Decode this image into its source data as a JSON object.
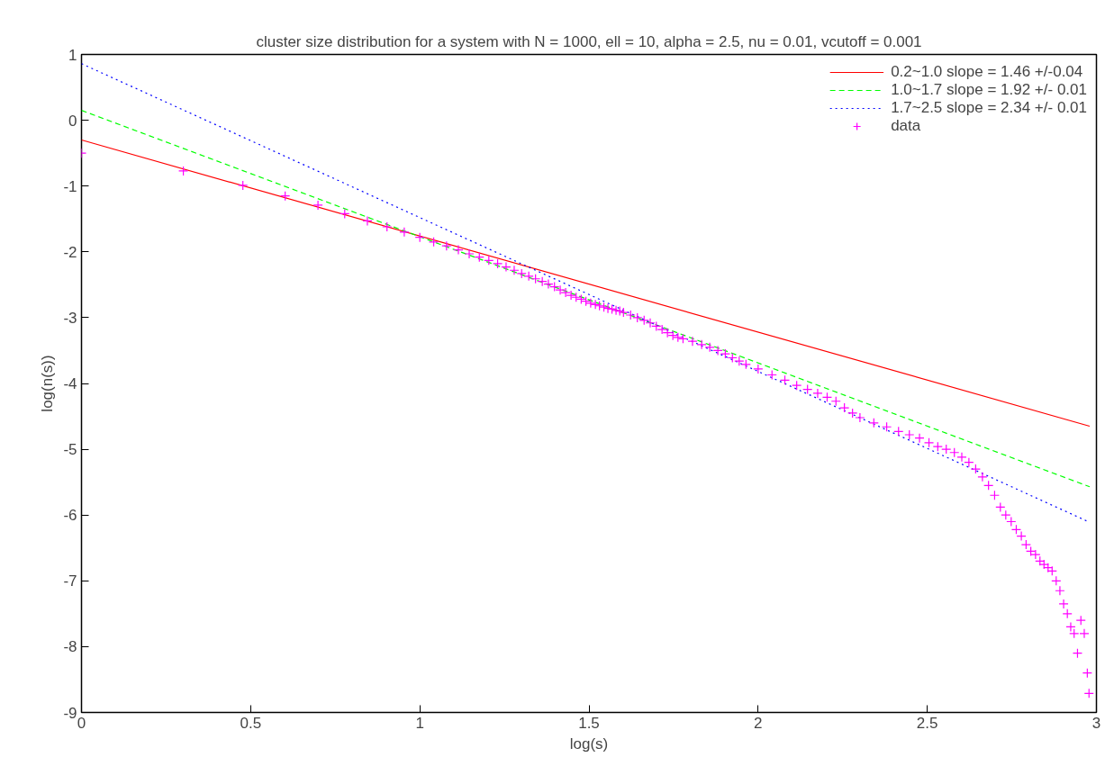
{
  "chart_data": {
    "type": "scatter",
    "title": "cluster size distribution for a system with N = 1000, ell = 10, alpha = 2.5, nu = 0.01, vcutoff = 0.001",
    "xlabel": "log(s)",
    "ylabel": "log(n(s))",
    "xlim": [
      0,
      3
    ],
    "ylim": [
      -9,
      1
    ],
    "xticks": [
      0,
      0.5,
      1,
      1.5,
      2,
      2.5,
      3
    ],
    "yticks": [
      -9,
      -8,
      -7,
      -6,
      -5,
      -4,
      -3,
      -2,
      -1,
      0,
      1
    ],
    "grid": false,
    "legend": "top right",
    "series": [
      {
        "name": "0.2~1.0 slope = 1.46 +/-0.04",
        "type": "line",
        "line_style": "solid",
        "color": "#ff0000",
        "x": [
          0,
          2.98
        ],
        "values": [
          -0.3,
          -4.65
        ]
      },
      {
        "name": "1.0~1.7 slope = 1.92 +/- 0.01",
        "type": "line",
        "line_style": "dashed",
        "color": "#00ff00",
        "x": [
          0,
          2.98
        ],
        "values": [
          0.15,
          -5.57
        ]
      },
      {
        "name": "1.7~2.5 slope = 2.34 +/- 0.01",
        "type": "line",
        "line_style": "dotted",
        "color": "#0000ff",
        "x": [
          0,
          2.98
        ],
        "values": [
          0.86,
          -6.11
        ]
      },
      {
        "name": "data",
        "marker": "cross",
        "color": "#ff00ff",
        "x": [
          0,
          0.301,
          0.477,
          0.602,
          0.699,
          0.778,
          0.845,
          0.903,
          0.954,
          1.0,
          1.041,
          1.079,
          1.114,
          1.146,
          1.176,
          1.204,
          1.23,
          1.255,
          1.279,
          1.301,
          1.322,
          1.342,
          1.362,
          1.38,
          1.398,
          1.415,
          1.431,
          1.447,
          1.462,
          1.477,
          1.491,
          1.505,
          1.519,
          1.531,
          1.544,
          1.556,
          1.568,
          1.58,
          1.591,
          1.602,
          1.623,
          1.643,
          1.663,
          1.681,
          1.699,
          1.716,
          1.732,
          1.748,
          1.763,
          1.778,
          1.806,
          1.833,
          1.857,
          1.881,
          1.903,
          1.924,
          1.944,
          1.964,
          2.0,
          2.041,
          2.079,
          2.114,
          2.146,
          2.176,
          2.204,
          2.23,
          2.255,
          2.279,
          2.301,
          2.342,
          2.38,
          2.415,
          2.447,
          2.477,
          2.505,
          2.531,
          2.556,
          2.58,
          2.602,
          2.623,
          2.643,
          2.663,
          2.681,
          2.699,
          2.716,
          2.732,
          2.748,
          2.763,
          2.778,
          2.792,
          2.806,
          2.82,
          2.833,
          2.845,
          2.857,
          2.869,
          2.881,
          2.892,
          2.903,
          2.914,
          2.924,
          2.934,
          2.944,
          2.954,
          2.964,
          2.973,
          2.978
        ],
        "values": [
          -0.5,
          -0.77,
          -0.99,
          -1.15,
          -1.29,
          -1.42,
          -1.53,
          -1.62,
          -1.7,
          -1.78,
          -1.85,
          -1.91,
          -1.97,
          -2.03,
          -2.08,
          -2.13,
          -2.18,
          -2.23,
          -2.28,
          -2.33,
          -2.37,
          -2.41,
          -2.45,
          -2.49,
          -2.53,
          -2.58,
          -2.62,
          -2.66,
          -2.69,
          -2.72,
          -2.75,
          -2.78,
          -2.8,
          -2.82,
          -2.84,
          -2.86,
          -2.87,
          -2.89,
          -2.9,
          -2.92,
          -2.96,
          -3.0,
          -3.04,
          -3.08,
          -3.13,
          -3.18,
          -3.23,
          -3.27,
          -3.3,
          -3.32,
          -3.36,
          -3.41,
          -3.45,
          -3.5,
          -3.55,
          -3.61,
          -3.66,
          -3.71,
          -3.78,
          -3.87,
          -3.95,
          -4.03,
          -4.09,
          -4.15,
          -4.21,
          -4.27,
          -4.37,
          -4.45,
          -4.52,
          -4.6,
          -4.66,
          -4.73,
          -4.78,
          -4.83,
          -4.9,
          -4.96,
          -5.0,
          -5.05,
          -5.12,
          -5.2,
          -5.3,
          -5.42,
          -5.55,
          -5.7,
          -5.88,
          -6.0,
          -6.1,
          -6.22,
          -6.32,
          -6.45,
          -6.55,
          -6.6,
          -6.7,
          -6.75,
          -6.8,
          -6.85,
          -7.0,
          -7.15,
          -7.35,
          -7.5,
          -7.7,
          -7.8,
          -8.1,
          -7.6,
          -7.8,
          -8.4,
          -8.71
        ]
      }
    ]
  }
}
